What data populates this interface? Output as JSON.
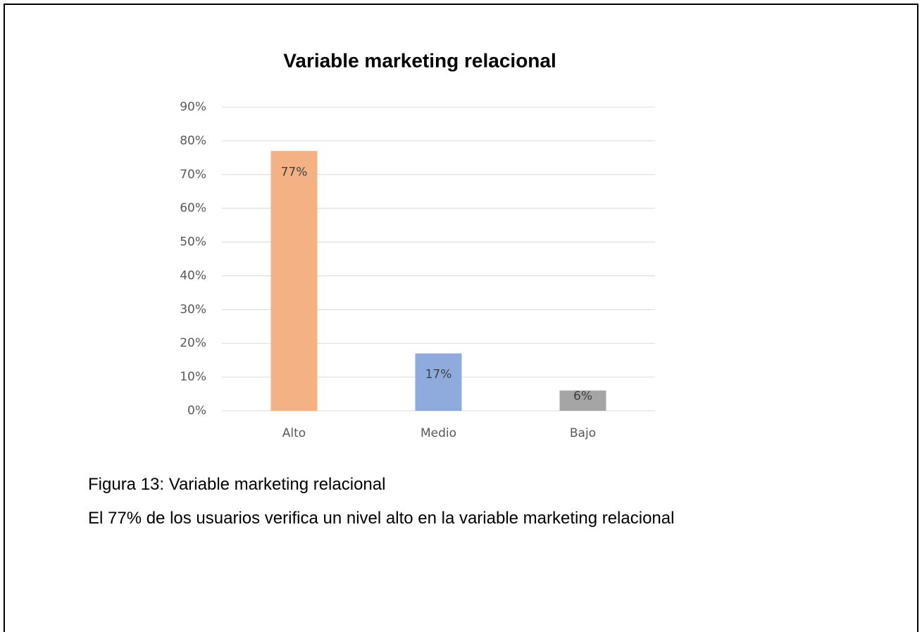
{
  "chart_data": {
    "type": "bar",
    "title": "Variable marketing relacional",
    "categories": [
      "Alto",
      "Medio",
      "Bajo"
    ],
    "values": [
      77,
      17,
      6
    ],
    "value_labels": [
      "77%",
      "17%",
      "6%"
    ],
    "colors": [
      "#f4b183",
      "#8faadc",
      "#a5a5a5"
    ],
    "ylim": [
      0,
      90
    ],
    "yticks": [
      {
        "value": 0,
        "label": "0%"
      },
      {
        "value": 10,
        "label": "10%"
      },
      {
        "value": 20,
        "label": "20%"
      },
      {
        "value": 30,
        "label": "30%"
      },
      {
        "value": 40,
        "label": "40%"
      },
      {
        "value": 50,
        "label": "50%"
      },
      {
        "value": 60,
        "label": "60%"
      },
      {
        "value": 70,
        "label": "70%"
      },
      {
        "value": 80,
        "label": "80%"
      },
      {
        "value": 90,
        "label": "90%"
      }
    ],
    "grid": true
  },
  "caption": "Figura 13: Variable marketing relacional",
  "description": "El 77% de los usuarios verifica un nivel alto en la variable marketing relacional"
}
